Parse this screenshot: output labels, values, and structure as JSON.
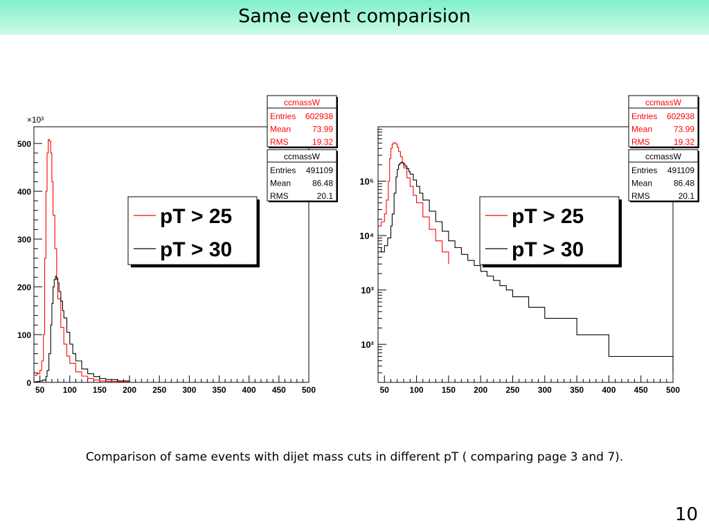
{
  "slide": {
    "title": "Same event comparision",
    "caption": "Comparison of same events with dijet mass cuts in different pT ( comparing page 3 and 7).",
    "page_number": "10"
  },
  "colors": {
    "red": "#ff0000",
    "black": "#000000",
    "header": "#7ff0c8"
  },
  "chart_data": [
    {
      "type": "line",
      "scale": "linear",
      "x_ticks": [
        50,
        100,
        150,
        200,
        250,
        300,
        350,
        400,
        450,
        500
      ],
      "y_ticks": [
        0,
        100,
        200,
        300,
        400,
        500
      ],
      "y_multiplier_label": "×10³",
      "xlim": [
        40,
        500
      ],
      "ylim": [
        0,
        535
      ],
      "stats": [
        {
          "title": "ccmassW",
          "color": "#ff0000",
          "rows": [
            {
              "label": "Entries",
              "value": "602938"
            },
            {
              "label": "Mean",
              "value": "73.99"
            },
            {
              "label": "RMS",
              "value": "19.32"
            }
          ]
        },
        {
          "title": "ccmassW",
          "color": "#000000",
          "rows": [
            {
              "label": "Entries",
              "value": "491109"
            },
            {
              "label": "Mean",
              "value": "86.48"
            },
            {
              "label": "RMS",
              "value": "20.1"
            }
          ]
        }
      ],
      "legend": [
        {
          "label": "pT > 25",
          "color": "#ff0000"
        },
        {
          "label": "pT > 30",
          "color": "#000000"
        }
      ],
      "series": [
        {
          "name": "pT > 25",
          "color": "#ff0000",
          "x": [
            40,
            45,
            50,
            53,
            56,
            58,
            60,
            62,
            64,
            66,
            68,
            70,
            72,
            75,
            78,
            80,
            85,
            90,
            95,
            100,
            110,
            120,
            130,
            140,
            150,
            160,
            180,
            200
          ],
          "y": [
            15,
            18,
            25,
            45,
            100,
            260,
            400,
            480,
            508,
            505,
            480,
            420,
            350,
            280,
            215,
            175,
            115,
            80,
            55,
            40,
            22,
            13,
            8,
            5,
            3,
            2,
            1,
            0.5
          ]
        },
        {
          "name": "pT > 30",
          "color": "#000000",
          "x": [
            40,
            45,
            50,
            55,
            60,
            62,
            65,
            68,
            70,
            72,
            74,
            76,
            78,
            80,
            82,
            85,
            88,
            90,
            95,
            100,
            105,
            110,
            120,
            130,
            140,
            150,
            160,
            180,
            200
          ],
          "y": [
            1,
            2,
            3,
            5,
            12,
            25,
            60,
            120,
            165,
            200,
            215,
            222,
            218,
            208,
            190,
            170,
            150,
            135,
            105,
            80,
            60,
            45,
            28,
            18,
            12,
            8,
            6,
            3,
            1
          ]
        }
      ]
    },
    {
      "type": "line",
      "scale": "log",
      "x_ticks": [
        50,
        100,
        150,
        200,
        250,
        300,
        350,
        400,
        450,
        500
      ],
      "y_ticks": [
        "10²",
        "10³",
        "10⁴",
        "10⁵"
      ],
      "y_tick_values": [
        100,
        1000,
        10000,
        100000
      ],
      "xlim": [
        40,
        500
      ],
      "ylim": [
        20,
        1000000
      ],
      "stats": [
        {
          "title": "ccmassW",
          "color": "#ff0000",
          "rows": [
            {
              "label": "Entries",
              "value": "602938"
            },
            {
              "label": "Mean",
              "value": "73.99"
            },
            {
              "label": "RMS",
              "value": "19.32"
            }
          ]
        },
        {
          "title": "ccmassW",
          "color": "#000000",
          "rows": [
            {
              "label": "Entries",
              "value": "491109"
            },
            {
              "label": "Mean",
              "value": "86.48"
            },
            {
              "label": "RMS",
              "value": "20.1"
            }
          ]
        }
      ],
      "legend": [
        {
          "label": "pT > 25",
          "color": "#ff0000"
        },
        {
          "label": "pT > 30",
          "color": "#000000"
        }
      ],
      "series": [
        {
          "name": "pT > 25",
          "color": "#ff0000",
          "x": [
            40,
            45,
            50,
            53,
            56,
            58,
            60,
            62,
            64,
            66,
            68,
            70,
            72,
            75,
            78,
            80,
            85,
            90,
            95,
            100,
            110,
            120,
            130,
            140,
            150
          ],
          "y": [
            15000,
            18000,
            25000,
            45000,
            100000,
            260000,
            400000,
            480000,
            508000,
            505000,
            480000,
            420000,
            350000,
            280000,
            215000,
            175000,
            115000,
            80000,
            55000,
            40000,
            22000,
            13000,
            8000,
            5000,
            3000
          ]
        },
        {
          "name": "pT > 30",
          "color": "#000000",
          "x": [
            40,
            45,
            50,
            55,
            60,
            62,
            65,
            68,
            70,
            72,
            74,
            76,
            78,
            80,
            82,
            85,
            88,
            90,
            95,
            100,
            105,
            110,
            120,
            130,
            140,
            150,
            160,
            170,
            180,
            190,
            200,
            210,
            220,
            230,
            240,
            250,
            275,
            300,
            350,
            400,
            500
          ],
          "y": [
            6000,
            5000,
            6500,
            9000,
            15000,
            25000,
            60000,
            120000,
            165000,
            200000,
            215000,
            222000,
            218000,
            208000,
            190000,
            170000,
            150000,
            135000,
            105000,
            80000,
            60000,
            45000,
            28000,
            18000,
            12000,
            8000,
            6000,
            4500,
            3500,
            2800,
            2200,
            1800,
            1500,
            1200,
            1000,
            750,
            480,
            300,
            150,
            60,
            30
          ]
        }
      ]
    }
  ]
}
